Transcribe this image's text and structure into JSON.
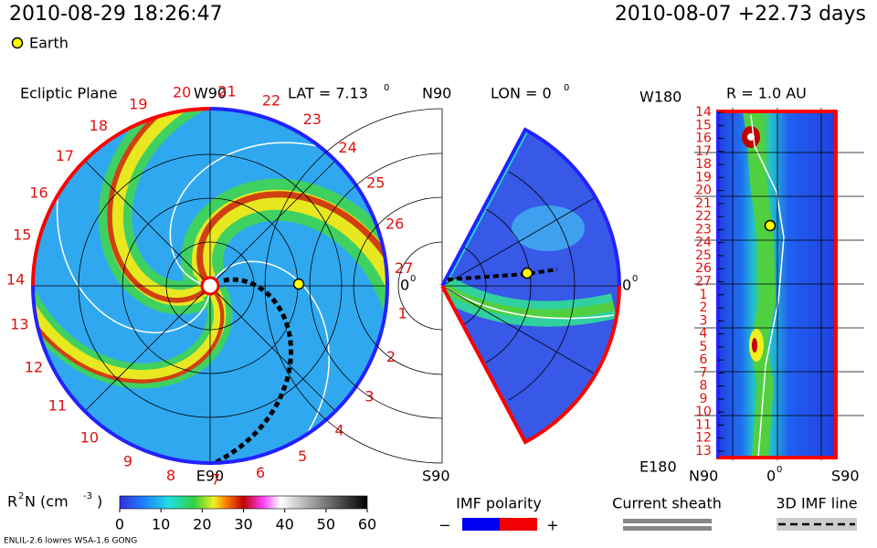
{
  "header": {
    "datetime": "2010-08-29 18:26:47",
    "forecast": "2010-08-07 +22.73 days",
    "legend": "Earth"
  },
  "ecliptic": {
    "title": "Ecliptic Plane",
    "top": "W90",
    "bottom": "E90",
    "lat": "LAT = 7.13",
    "lat_sup": "0",
    "right": "0",
    "right_sup": "0",
    "rotation_labels": [
      "1",
      "2",
      "3",
      "4",
      "5",
      "6",
      "7",
      "8",
      "9",
      "10",
      "11",
      "12",
      "13",
      "14",
      "15",
      "16",
      "17",
      "18",
      "19",
      "20",
      "21",
      "22",
      "23",
      "24",
      "25",
      "26",
      "27"
    ]
  },
  "meridional": {
    "top": "N90",
    "title": "LON = 0",
    "title_sup": "0",
    "bottom": "S90",
    "right": "0",
    "right_sup": "0"
  },
  "radial": {
    "top": "W180",
    "title": "R = 1.0 AU",
    "bottom": "E180",
    "x_left": "N90",
    "x_mid": "0",
    "x_mid_sup": "0",
    "x_right": "S90",
    "rotation_labels": [
      "14",
      "15",
      "16",
      "17",
      "18",
      "19",
      "20",
      "21",
      "22",
      "23",
      "24",
      "25",
      "26",
      "27",
      "1",
      "2",
      "3",
      "4",
      "5",
      "6",
      "7",
      "8",
      "9",
      "10",
      "11",
      "12",
      "13"
    ]
  },
  "colorbar": {
    "label": "R",
    "label_sup": "2",
    "label_unit": " N (cm",
    "label_unit_sup": "-3",
    "label_close": ")",
    "range": [
      0,
      60
    ],
    "ticks": [
      0,
      10,
      20,
      30,
      40,
      50,
      60
    ]
  },
  "legend": {
    "polarity": "IMF polarity",
    "minus": "−",
    "plus": "+",
    "sheath": "Current sheath",
    "imf_line": "3D IMF line"
  },
  "footer": "ENLIL-2.6 lowres WSA-1.6 GONG"
}
